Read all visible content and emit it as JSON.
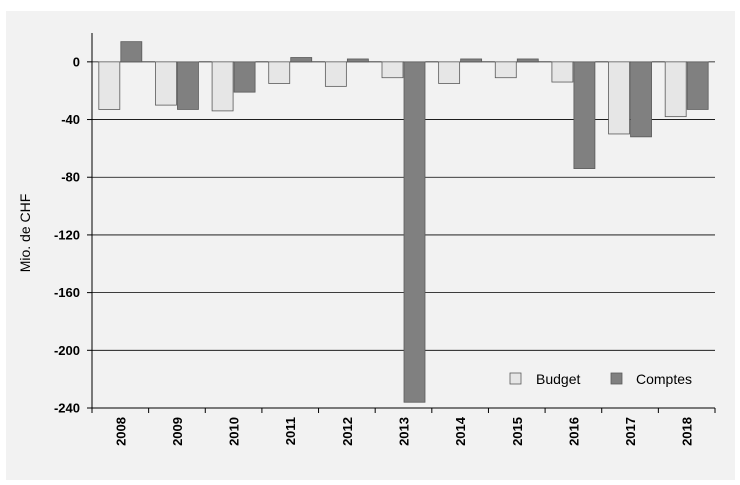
{
  "chart_data": {
    "type": "bar",
    "ylabel": "Mio. de CHF",
    "ylim": [
      -240,
      20
    ],
    "yticks": [
      0,
      -40,
      -80,
      -120,
      -160,
      -200,
      -240
    ],
    "categories": [
      "2008",
      "2009",
      "2010",
      "2011",
      "2012",
      "2013",
      "2014",
      "2015",
      "2016",
      "2017",
      "2018"
    ],
    "series": [
      {
        "name": "Budget",
        "color": "#e6e6e6",
        "values": [
          -33,
          -30,
          -34,
          -15,
          -17,
          -11,
          -15,
          -11,
          -14,
          -50,
          -38
        ]
      },
      {
        "name": "Comptes",
        "color": "#808080",
        "values": [
          14,
          -33,
          -21,
          3,
          2,
          -236,
          2,
          2,
          -74,
          -52,
          -33
        ]
      }
    ],
    "grid": true,
    "legend": "bottom-right"
  }
}
